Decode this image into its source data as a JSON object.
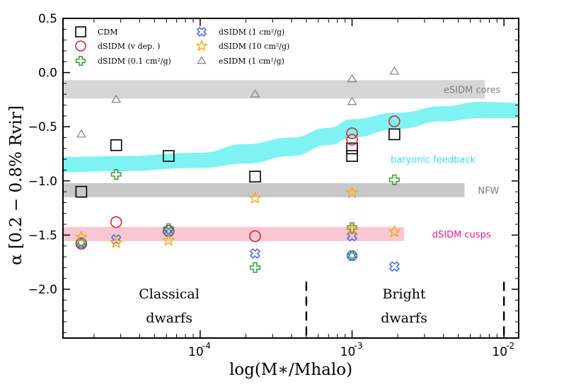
{
  "chart_data": {
    "type": "scatter",
    "xscale": "log",
    "xlim": [
      1.25e-05,
      0.0125
    ],
    "ylim": [
      -2.45,
      0.5
    ],
    "xlabel": "log(M∗/Mhalo)",
    "ylabel": "α [0.2 − 0.8% Rvir]",
    "xticks": [
      {
        "value": 0.0001,
        "label": "10",
        "exp": "-4"
      },
      {
        "value": 0.001,
        "label": "10",
        "exp": "-3"
      },
      {
        "value": 0.01,
        "label": "10",
        "exp": "-2"
      }
    ],
    "yticks": [
      {
        "value": 0.5,
        "label": "0.5"
      },
      {
        "value": 0.0,
        "label": "0.0"
      },
      {
        "value": -0.5,
        "label": "−0.5"
      },
      {
        "value": -1.0,
        "label": "−1.0"
      },
      {
        "value": -1.5,
        "label": "−1.5"
      },
      {
        "value": -2.0,
        "label": "−2.0"
      }
    ],
    "bands": [
      {
        "name": "eSIDM cores",
        "x": [
          1.25e-05,
          0.0075
        ],
        "y_center": -0.155,
        "half_width": 0.085,
        "color": "#d6d6d6",
        "label_color": "#7f7f7f",
        "label_x": 0.0095
      },
      {
        "name": "NFW",
        "x": [
          1.25e-05,
          0.0055
        ],
        "y_center": -1.085,
        "half_width": 0.065,
        "color": "#c8c8c8",
        "label_color": "#7f7f7f",
        "label_x": 0.0093
      },
      {
        "name": "dSIDM cusps",
        "x": [
          1.25e-05,
          0.0022
        ],
        "y_center": -1.49,
        "half_width": 0.065,
        "color": "#f7c8d2",
        "label_color": "#e0218a",
        "label_x": 0.0082
      }
    ],
    "feedback_band": {
      "name": "baryonic feedback",
      "color": "#7ff2f4",
      "label_color": "#33e0ee",
      "label_x": 0.0065,
      "label_y": -0.8,
      "x": [
        1.25e-05,
        3e-05,
        0.0001,
        0.0002,
        0.0004,
        0.0007,
        0.001,
        0.002,
        0.004,
        0.007,
        0.0125
      ],
      "upper": [
        -0.78,
        -0.77,
        -0.74,
        -0.66,
        -0.6,
        -0.51,
        -0.43,
        -0.37,
        -0.31,
        -0.27,
        -0.28
      ],
      "lower": [
        -0.92,
        -0.91,
        -0.88,
        -0.84,
        -0.77,
        -0.67,
        -0.6,
        -0.52,
        -0.45,
        -0.42,
        -0.42
      ]
    },
    "regions": [
      {
        "lines": [
          "Classical",
          "dwarfs"
        ],
        "x": 6.25e-05,
        "y": [
          -2.04,
          -2.26
        ]
      },
      {
        "lines": [
          "Bright",
          "dwarfs"
        ],
        "x": 0.0022,
        "y": [
          -2.04,
          -2.26
        ]
      }
    ],
    "dividers": [
      0.0005,
      0.01
    ],
    "series": [
      {
        "name": "CDM",
        "legend": "CDM",
        "marker": "square",
        "color": "#000000",
        "points": [
          [
            1.65e-05,
            -1.1
          ],
          [
            2.8e-05,
            -0.67
          ],
          [
            6.2e-05,
            -0.77
          ],
          [
            0.00023,
            -0.96
          ],
          [
            0.001,
            -0.7
          ],
          [
            0.001,
            -0.77
          ],
          [
            0.0019,
            -0.57
          ]
        ]
      },
      {
        "name": "dSIDM (v dep.)",
        "legend": "dSIDM (v dep. )",
        "marker": "circle",
        "color": "#d62728",
        "points": [
          [
            1.65e-05,
            -1.58
          ],
          [
            2.8e-05,
            -1.38
          ],
          [
            6.2e-05,
            -1.46
          ],
          [
            0.00023,
            -1.51
          ],
          [
            0.001,
            -0.56
          ],
          [
            0.001,
            -0.62
          ],
          [
            0.0019,
            -0.45
          ]
        ]
      },
      {
        "name": "dSIDM (0.1 cm2/g)",
        "legend": "dSIDM (0.1 cm²/g)",
        "marker": "plus",
        "color": "#2ca02c",
        "points": [
          [
            1.65e-05,
            -1.57
          ],
          [
            2.8e-05,
            -0.94
          ],
          [
            6.2e-05,
            -1.44
          ],
          [
            0.00023,
            -1.8
          ],
          [
            0.001,
            -1.43
          ],
          [
            0.001,
            -1.69
          ],
          [
            0.0019,
            -0.99
          ]
        ]
      },
      {
        "name": "dSIDM (1 cm2/g)",
        "legend": "dSIDM (1 cm²/g)",
        "marker": "xcross",
        "color": "#4466dd",
        "points": [
          [
            1.65e-05,
            -1.57
          ],
          [
            2.8e-05,
            -1.54
          ],
          [
            6.2e-05,
            -1.47
          ],
          [
            0.00023,
            -1.67
          ],
          [
            0.001,
            -1.51
          ],
          [
            0.001,
            -1.69
          ],
          [
            0.0019,
            -1.79
          ]
        ]
      },
      {
        "name": "dSIDM (10 cm2/g)",
        "legend": "dSIDM (10 cm²/g)",
        "marker": "star",
        "color": "#ffa500",
        "points": [
          [
            1.65e-05,
            -1.52
          ],
          [
            2.8e-05,
            -1.57
          ],
          [
            6.2e-05,
            -1.55
          ],
          [
            0.00023,
            -1.16
          ],
          [
            0.001,
            -1.11
          ],
          [
            0.001,
            -1.45
          ],
          [
            0.0019,
            -1.47
          ]
        ]
      },
      {
        "name": "eSIDM (1 cm2/g)",
        "legend": "eSIDM (1 cm²/g)",
        "marker": "triangle",
        "color": "#808080",
        "points": [
          [
            1.65e-05,
            -0.57
          ],
          [
            2.8e-05,
            -0.25
          ],
          [
            0.00023,
            -0.2
          ],
          [
            0.001,
            -0.06
          ],
          [
            0.001,
            -0.27
          ],
          [
            0.0019,
            0.01
          ]
        ]
      }
    ],
    "legend_position": "top-left"
  }
}
